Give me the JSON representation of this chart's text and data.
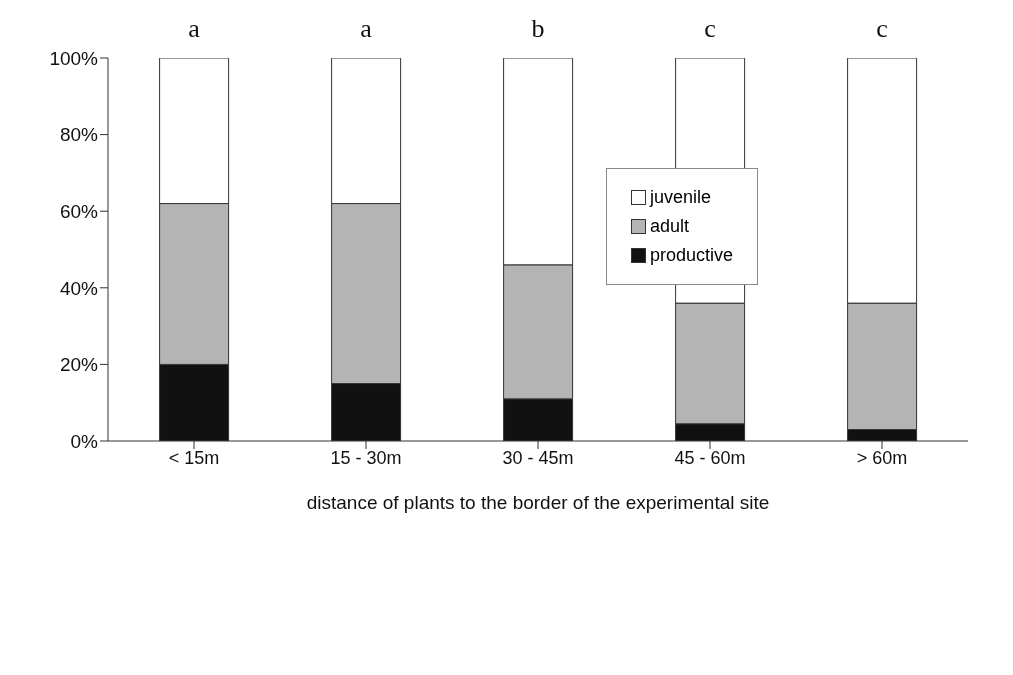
{
  "chart_data": {
    "type": "bar",
    "stacked": true,
    "xlabel": "distance of plants to the border of the experimental site",
    "categories": [
      "< 15m",
      "15 - 30m",
      "30 - 45m",
      "45 - 60m",
      "> 60m"
    ],
    "series": [
      {
        "name": "productive",
        "color": "#111111",
        "values": [
          20,
          15,
          11,
          4.5,
          3
        ]
      },
      {
        "name": "adult",
        "color": "#b4b4b4",
        "values": [
          42,
          47,
          35,
          31.5,
          33
        ]
      },
      {
        "name": "juvenile",
        "color": "#ffffff",
        "values": [
          38,
          38,
          54,
          64,
          64
        ]
      }
    ],
    "ylim": [
      0,
      100
    ],
    "yticks": [
      {
        "value": 0,
        "label": "0%"
      },
      {
        "value": 20,
        "label": "20%"
      },
      {
        "value": 40,
        "label": "40%"
      },
      {
        "value": 60,
        "label": "60%"
      },
      {
        "value": 80,
        "label": "80%"
      },
      {
        "value": 100,
        "label": "100%"
      }
    ],
    "annotations": [
      "a",
      "a",
      "b",
      "c",
      "c"
    ],
    "grid": false,
    "legend": "top right"
  }
}
